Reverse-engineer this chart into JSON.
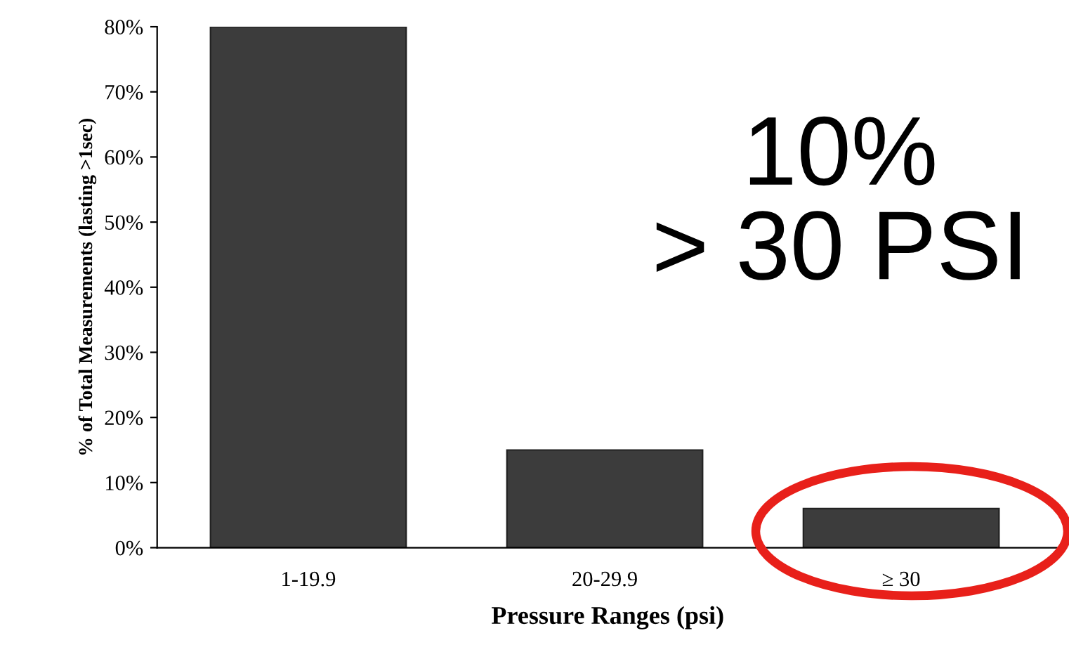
{
  "chart_data": {
    "type": "bar",
    "categories": [
      "1-19.9",
      "20-29.9",
      "≥ 30"
    ],
    "values": [
      80,
      15,
      6
    ],
    "color": "#3c3c3c",
    "xlabel": "Pressure Ranges (psi)",
    "ylabel": "% of Total Measurements (lasting >1sec)",
    "ylim": [
      0,
      80
    ],
    "yticks": [
      {
        "value": 0,
        "label": "0%"
      },
      {
        "value": 10,
        "label": "10%"
      },
      {
        "value": 20,
        "label": "20%"
      },
      {
        "value": 30,
        "label": "30%"
      },
      {
        "value": 40,
        "label": "40%"
      },
      {
        "value": 50,
        "label": "50%"
      },
      {
        "value": 60,
        "label": "60%"
      },
      {
        "value": 70,
        "label": "70%"
      },
      {
        "value": 80,
        "label": "80%"
      }
    ],
    "grid": false,
    "annotations": [
      "10%\n> 30 PSI"
    ]
  }
}
